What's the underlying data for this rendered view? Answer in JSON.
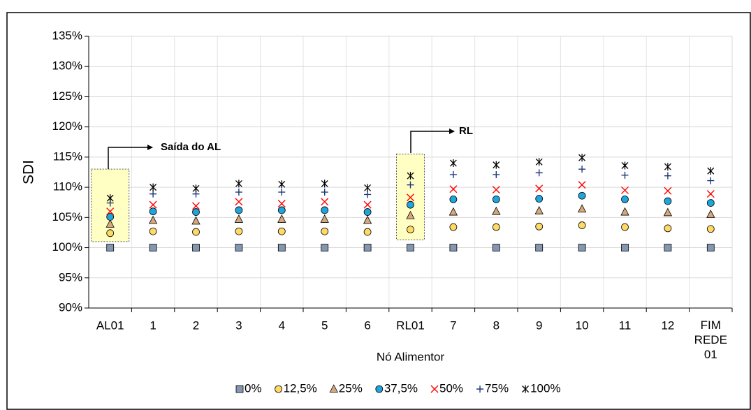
{
  "chart_data": {
    "type": "scatter",
    "categories": [
      "AL01",
      "1",
      "2",
      "3",
      "4",
      "5",
      "6",
      "RL01",
      "7",
      "8",
      "9",
      "10",
      "11",
      "12",
      "FIM REDE 01"
    ],
    "x_label": "Nó Alimentor",
    "y_label": "SDI",
    "ylim": [
      90,
      135
    ],
    "yticks": [
      {
        "value": 90,
        "label": "90%"
      },
      {
        "value": 95,
        "label": "95%"
      },
      {
        "value": 100,
        "label": "100%"
      },
      {
        "value": 105,
        "label": "105%"
      },
      {
        "value": 110,
        "label": "110%"
      },
      {
        "value": 115,
        "label": "115%"
      },
      {
        "value": 120,
        "label": "120%"
      },
      {
        "value": 125,
        "label": "125%"
      },
      {
        "value": 130,
        "label": "130%"
      },
      {
        "value": 135,
        "label": "135%"
      }
    ],
    "grid": true,
    "legend": "bottom",
    "annotations": [
      "Saída do AL",
      "RL"
    ],
    "series": [
      {
        "name": "0%",
        "color": "#8497b0",
        "marker": "square",
        "values": [
          100,
          100,
          100,
          100,
          100,
          100,
          100,
          100,
          100,
          100,
          100,
          100,
          100,
          100,
          100
        ]
      },
      {
        "name": "12,5%",
        "color": "#ffd966",
        "marker": "circle",
        "values": [
          102.4,
          102.7,
          102.6,
          102.7,
          102.7,
          102.7,
          102.6,
          103.0,
          103.4,
          103.4,
          103.5,
          103.7,
          103.4,
          103.2,
          103.1
        ]
      },
      {
        "name": "25%",
        "color": "#d6a87c",
        "marker": "triangle",
        "values": [
          103.9,
          104.5,
          104.4,
          104.7,
          104.7,
          104.7,
          104.5,
          105.3,
          105.9,
          106.0,
          106.1,
          106.4,
          105.9,
          105.8,
          105.5
        ]
      },
      {
        "name": "37,5%",
        "color": "#1fa5dc",
        "marker": "circle",
        "values": [
          105.1,
          106.0,
          105.9,
          106.2,
          106.2,
          106.2,
          105.9,
          107.1,
          108.0,
          108.0,
          108.1,
          108.6,
          108.0,
          107.7,
          107.4
        ]
      },
      {
        "name": "50%",
        "color": "#ff0000",
        "marker": "x",
        "values": [
          106.0,
          107.1,
          106.9,
          107.6,
          107.3,
          107.6,
          107.1,
          108.3,
          109.7,
          109.6,
          109.8,
          110.4,
          109.5,
          109.4,
          108.9
        ]
      },
      {
        "name": "75%",
        "color": "#1f3a7a",
        "marker": "plus",
        "values": [
          107.4,
          108.9,
          108.9,
          109.2,
          109.2,
          109.2,
          108.8,
          110.4,
          112.1,
          112.1,
          112.4,
          113.0,
          112.0,
          111.9,
          111.1
        ]
      },
      {
        "name": "100%",
        "color": "#000000",
        "marker": "star",
        "values": [
          108.2,
          110.0,
          109.8,
          110.6,
          110.5,
          110.6,
          109.9,
          111.9,
          114.0,
          113.7,
          114.2,
          114.9,
          113.6,
          113.4,
          112.7
        ]
      }
    ]
  }
}
